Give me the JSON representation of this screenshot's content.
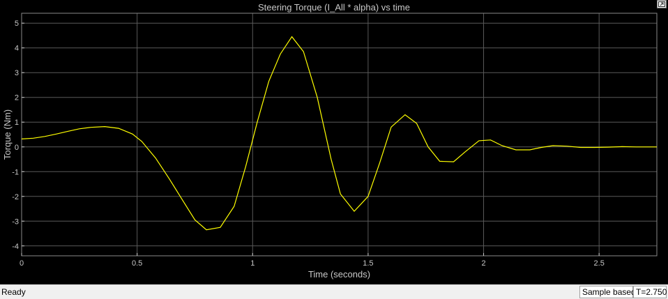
{
  "window": {
    "title": "Steering Torque (I_All * alpha) vs time",
    "dock_icon": "undock-icon"
  },
  "status": {
    "ready": "Ready",
    "mode": "Sample based",
    "time": "T=2.750"
  },
  "colors": {
    "background": "#000000",
    "grid": "#5a5a5a",
    "axis_text": "#c8c8c8",
    "line": "#ffff00"
  },
  "chart_data": {
    "type": "line",
    "title": "Steering Torque (I_All * alpha) vs time",
    "xlabel": "Time (seconds)",
    "ylabel": "Torque (Nm)",
    "xlim": [
      0,
      2.75
    ],
    "ylim": [
      -4.4,
      5.4
    ],
    "grid": true,
    "xticks": [
      0,
      0.5,
      1,
      1.5,
      2,
      2.5
    ],
    "xtick_labels": [
      "0",
      "0.5",
      "1",
      "1.5",
      "2",
      "2.5"
    ],
    "yticks": [
      -4,
      -3,
      -2,
      -1,
      0,
      1,
      2,
      3,
      4,
      5
    ],
    "ytick_labels": [
      "-4",
      "-3",
      "-2",
      "-1",
      "0",
      "1",
      "2",
      "3",
      "4",
      "5"
    ],
    "series": [
      {
        "color": "#ffff00",
        "x": [
          0,
          0.05,
          0.1,
          0.15,
          0.2,
          0.25,
          0.3,
          0.36,
          0.42,
          0.48,
          0.52,
          0.58,
          0.64,
          0.7,
          0.75,
          0.8,
          0.86,
          0.92,
          0.97,
          1.02,
          1.07,
          1.12,
          1.17,
          1.22,
          1.28,
          1.34,
          1.38,
          1.44,
          1.5,
          1.55,
          1.6,
          1.66,
          1.71,
          1.76,
          1.81,
          1.87,
          1.92,
          1.98,
          2.03,
          2.08,
          2.14,
          2.2,
          2.25,
          2.3,
          2.36,
          2.42,
          2.48,
          2.54,
          2.6,
          2.66,
          2.72,
          2.75
        ],
        "y": [
          0.32,
          0.35,
          0.42,
          0.52,
          0.63,
          0.73,
          0.79,
          0.82,
          0.75,
          0.52,
          0.22,
          -0.45,
          -1.3,
          -2.2,
          -2.95,
          -3.35,
          -3.25,
          -2.4,
          -0.8,
          1.0,
          2.65,
          3.75,
          4.45,
          3.85,
          2.0,
          -0.5,
          -1.9,
          -2.6,
          -2.0,
          -0.65,
          0.8,
          1.3,
          0.95,
          0.0,
          -0.58,
          -0.6,
          -0.2,
          0.25,
          0.28,
          0.05,
          -0.12,
          -0.12,
          -0.02,
          0.05,
          0.03,
          -0.02,
          -0.02,
          -0.01,
          0.01,
          0.0,
          0.0,
          0.0
        ]
      }
    ]
  }
}
